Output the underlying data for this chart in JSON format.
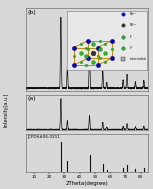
{
  "xlabel": "2Theta(degree)",
  "ylabel": "Intensity[a.u.]",
  "xlim": [
    5,
    85
  ],
  "label_b": "(b)",
  "label_a": "(a)",
  "label_ref": "JCPDS#06-0211",
  "xticks": [
    10,
    20,
    30,
    40,
    50,
    60,
    70,
    80
  ],
  "background": "#d8d8d8",
  "panel_bg": "#d8d8d8",
  "line_color": "#111111",
  "ref_peaks_2theta": [
    27.8,
    32.0,
    46.5,
    55.2,
    57.8,
    68.5,
    71.0,
    76.5,
    82.0
  ],
  "ref_peaks_intensity": [
    1.0,
    0.35,
    0.55,
    0.25,
    0.08,
    0.12,
    0.22,
    0.1,
    0.12
  ],
  "a_peaks_2theta": [
    27.8,
    32.0,
    46.5,
    55.2,
    57.8,
    68.5,
    71.0,
    76.5,
    82.0
  ],
  "a_peaks_intensity": [
    1.0,
    0.28,
    0.45,
    0.22,
    0.07,
    0.1,
    0.18,
    0.08,
    0.1
  ],
  "b_peaks_2theta": [
    27.8,
    32.0,
    46.5,
    55.2,
    57.8,
    68.5,
    71.0,
    76.5,
    82.0
  ],
  "b_peaks_intensity": [
    1.0,
    0.3,
    0.48,
    0.24,
    0.08,
    0.11,
    0.2,
    0.09,
    0.11
  ],
  "crystal_corner_color": "#0000dd",
  "crystal_face_color": "#22bb22",
  "crystal_center_color": "#333333",
  "crystal_edge_color": "#cc8800",
  "legend_labels": [
    "Pb2+",
    "RE3+",
    "F",
    "F-",
    "interstitial"
  ],
  "legend_colors": [
    "#0000dd",
    "#333333",
    "#22bb22",
    "#22bb22",
    "#aaaaaa"
  ]
}
